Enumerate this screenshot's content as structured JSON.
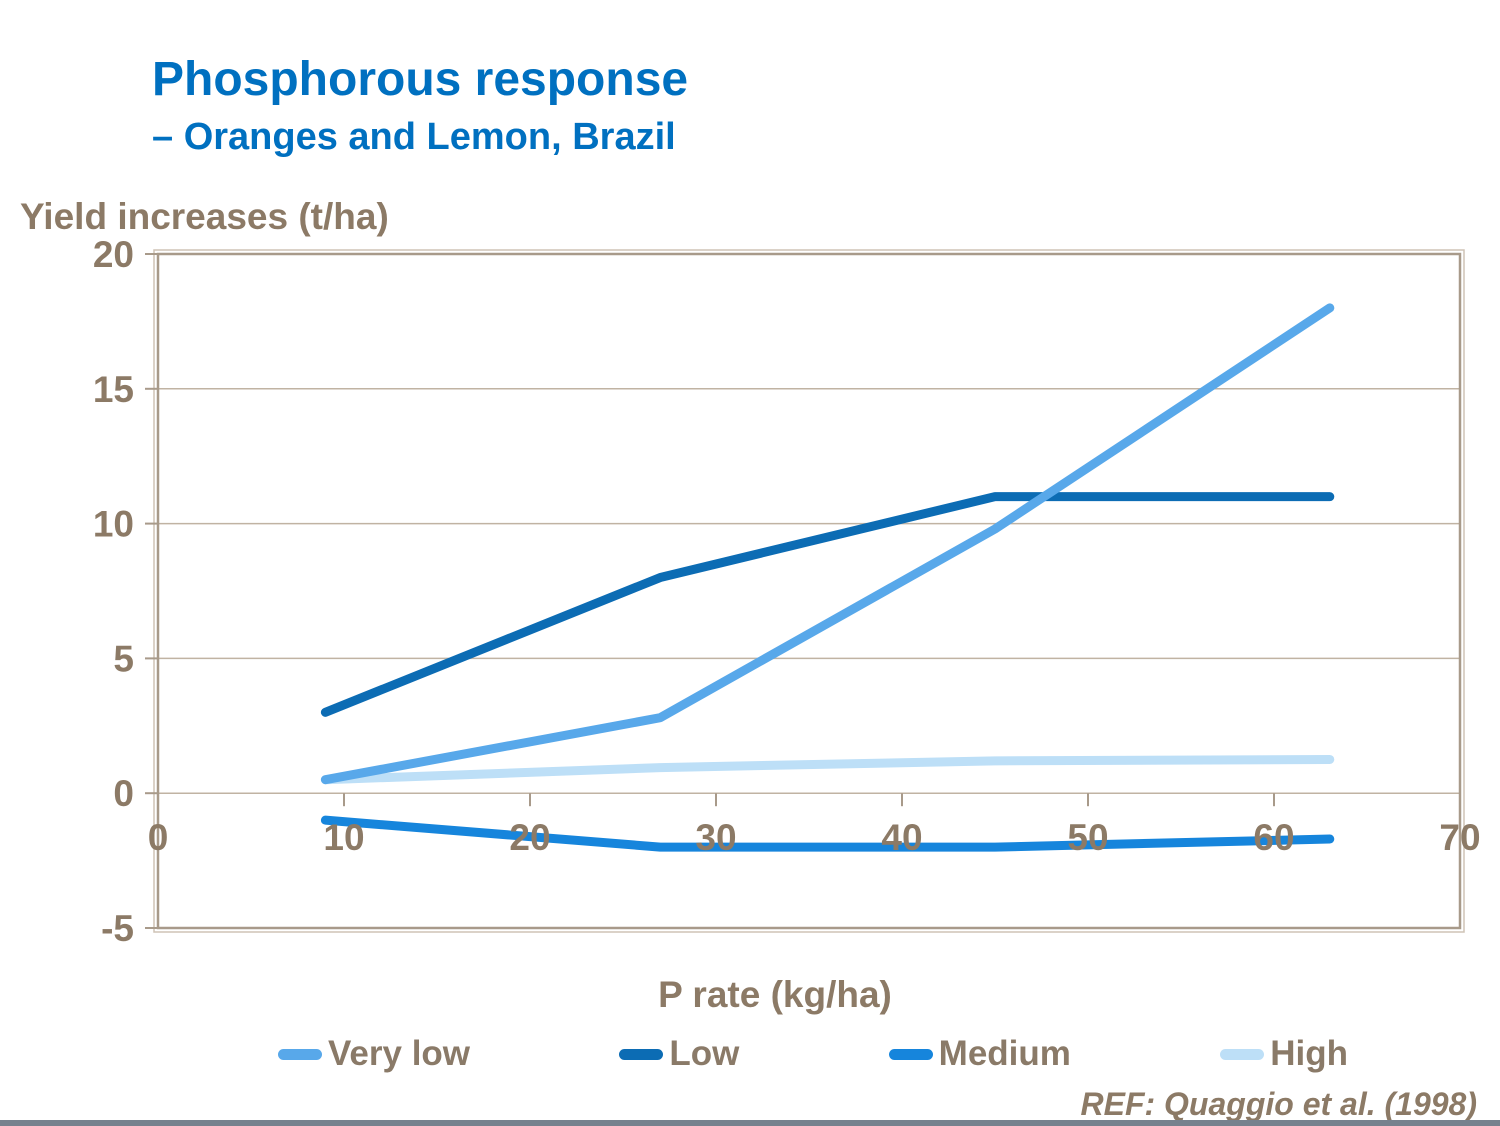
{
  "slide": {
    "title": "Phosphorous response",
    "subtitle": "– Oranges and Lemon, Brazil",
    "reference": "REF: Quaggio et al. (1998)"
  },
  "colors": {
    "title_blue": "#0070C0",
    "axis_text": "#8C7A66",
    "frame": "#A89A8A",
    "frame_highlight": "#CFC3B5",
    "gridline": "#C0B3A3",
    "footer_bar": "#76828E"
  },
  "chart_data": {
    "type": "line",
    "title": "",
    "xlabel": "P rate (kg/ha)",
    "ylabel": "Yield increases (t/ha)",
    "x": [
      9,
      27,
      45,
      63
    ],
    "series": [
      {
        "name": "Very low",
        "color": "#58A8EA",
        "values": [
          0.5,
          2.8,
          9.8,
          18
        ]
      },
      {
        "name": "Low",
        "color": "#0C6CB4",
        "values": [
          3,
          8,
          11,
          11
        ]
      },
      {
        "name": "Medium",
        "color": "#1685DC",
        "values": [
          -1,
          -2,
          -2,
          -1.7
        ]
      },
      {
        "name": "High",
        "color": "#BDDFF7",
        "values": [
          0.5,
          0.95,
          1.2,
          1.25
        ]
      }
    ],
    "xlim": [
      0,
      70
    ],
    "ylim": [
      -5,
      20
    ],
    "xticks": [
      0,
      10,
      20,
      30,
      40,
      50,
      60,
      70
    ],
    "yticks": [
      -5,
      0,
      5,
      10,
      15,
      20
    ],
    "grid": "horizontal",
    "legend_position": "bottom"
  }
}
